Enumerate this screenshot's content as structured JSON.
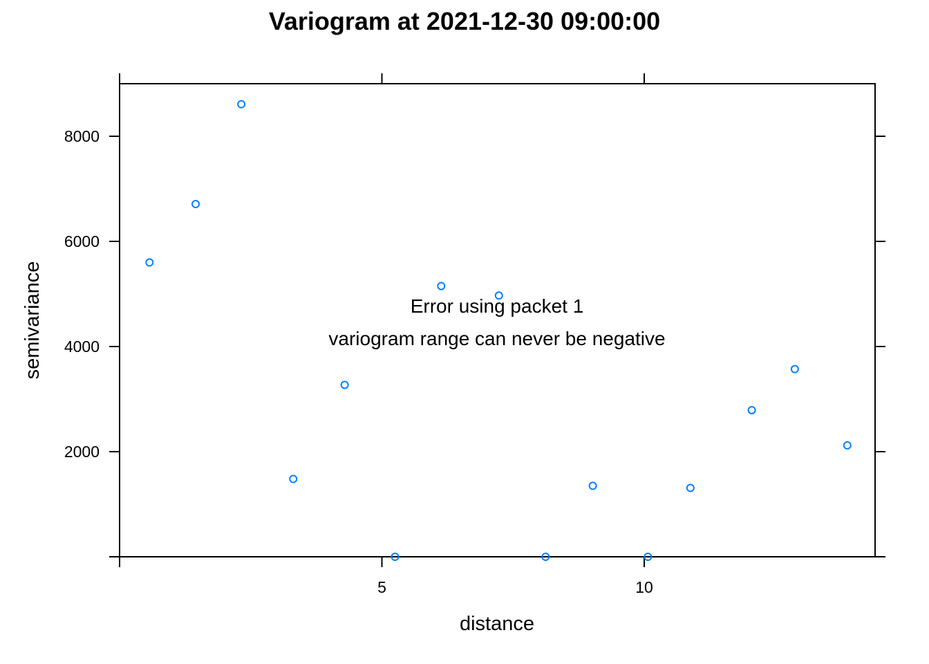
{
  "chart_data": {
    "type": "scatter",
    "title": "Variogram at 2021-12-30 09:00:00",
    "xlabel": "distance",
    "ylabel": "semivariance",
    "xlim": [
      0.0,
      14.4
    ],
    "ylim": [
      0,
      9000
    ],
    "x_ticks": [
      5,
      10
    ],
    "x_tick_labels": [
      "5",
      "10"
    ],
    "y_ticks": [
      2000,
      4000,
      6000,
      8000
    ],
    "y_tick_labels": [
      "2000",
      "4000",
      "6000",
      "8000"
    ],
    "point_color": "#0080FF",
    "grid": false,
    "points": [
      {
        "x": 0.57,
        "y": 5600
      },
      {
        "x": 1.45,
        "y": 6710
      },
      {
        "x": 2.32,
        "y": 8610
      },
      {
        "x": 3.31,
        "y": 1480
      },
      {
        "x": 4.29,
        "y": 3270
      },
      {
        "x": 5.25,
        "y": 0
      },
      {
        "x": 6.13,
        "y": 5150
      },
      {
        "x": 7.23,
        "y": 4970
      },
      {
        "x": 8.12,
        "y": 0
      },
      {
        "x": 9.02,
        "y": 1350
      },
      {
        "x": 10.07,
        "y": 0
      },
      {
        "x": 10.88,
        "y": 1310
      },
      {
        "x": 12.05,
        "y": 2790
      },
      {
        "x": 12.87,
        "y": 3570
      },
      {
        "x": 13.87,
        "y": 2120
      }
    ],
    "annotations": [
      "Error using packet 1",
      "variogram range can never be negative"
    ]
  }
}
